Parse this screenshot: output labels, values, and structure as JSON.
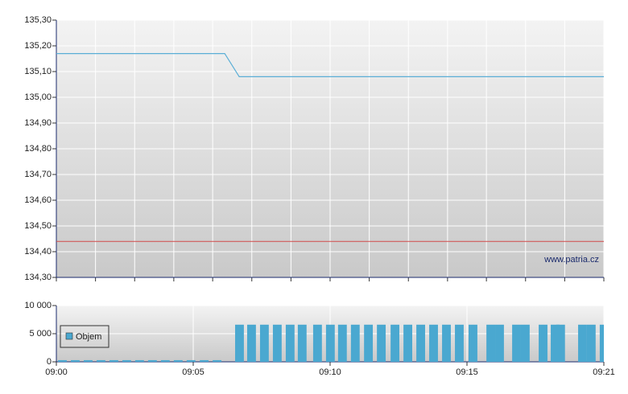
{
  "chart_data": [
    {
      "type": "line",
      "x": [
        0,
        6.15,
        6.68,
        20
      ],
      "values": [
        135.17,
        135.17,
        135.08,
        135.08
      ],
      "color": "#5aaed6",
      "reference_line": {
        "value": 134.44,
        "color": "#d04a4a"
      },
      "xlim": [
        0,
        20
      ],
      "xticks": [
        0,
        1.43,
        2.86,
        4.29,
        5.71,
        7.14,
        8.57,
        10,
        11.43,
        12.86,
        14.29,
        15.71,
        17.14,
        18.57,
        20
      ],
      "ylim": [
        134.3,
        135.3
      ],
      "yticks": [
        {
          "value": 134.3,
          "label": "134,30"
        },
        {
          "value": 134.4,
          "label": "134,40"
        },
        {
          "value": 134.5,
          "label": "134,50"
        },
        {
          "value": 134.6,
          "label": "134,60"
        },
        {
          "value": 134.7,
          "label": "134,70"
        },
        {
          "value": 134.8,
          "label": "134,80"
        },
        {
          "value": 134.9,
          "label": "134,90"
        },
        {
          "value": 135.0,
          "label": "135,00"
        },
        {
          "value": 135.1,
          "label": "135,10"
        },
        {
          "value": 135.2,
          "label": "135,20"
        },
        {
          "value": 135.3,
          "label": "135,30"
        }
      ],
      "grid": true,
      "watermark": "www.patria.cz"
    },
    {
      "type": "bar",
      "x": [
        0.06,
        0.53,
        1.0,
        1.47,
        1.94,
        2.41,
        2.88,
        3.35,
        3.82,
        4.29,
        4.76,
        5.24,
        5.71,
        6.53,
        6.97,
        7.44,
        7.91,
        8.38,
        8.82,
        9.38,
        9.85,
        10.29,
        10.76,
        11.24,
        11.71,
        12.21,
        12.68,
        13.15,
        13.62,
        14.09,
        14.56,
        15.06,
        15.71,
        16.03,
        16.65,
        16.97,
        17.62,
        18.06,
        18.26,
        19.06,
        19.38,
        19.85
      ],
      "series": [
        {
          "name": "Objem",
          "color": "#4aa8d0",
          "values": [
            300,
            300,
            300,
            300,
            300,
            300,
            300,
            300,
            300,
            300,
            300,
            300,
            300,
            6600,
            6600,
            6600,
            6600,
            6600,
            6600,
            6600,
            6600,
            6600,
            6600,
            6600,
            6600,
            6600,
            6600,
            6600,
            6600,
            6600,
            6600,
            6600,
            6600,
            6600,
            6600,
            6600,
            6600,
            6600,
            6600,
            6600,
            6600,
            6600
          ]
        }
      ],
      "legend": "upper left",
      "xlim": [
        0,
        20
      ],
      "xticks": [
        {
          "value": 0,
          "label": "09:00"
        },
        {
          "value": 5,
          "label": "09:05"
        },
        {
          "value": 10,
          "label": "09:10"
        },
        {
          "value": 15,
          "label": "09:15"
        },
        {
          "value": 20,
          "label": "09:21"
        }
      ],
      "ylim": [
        0,
        10000
      ],
      "yticks": [
        0,
        {
          "value": 5000,
          "label": "5 000"
        },
        {
          "value": 10000,
          "label": "10 000"
        }
      ],
      "grid": true
    }
  ]
}
